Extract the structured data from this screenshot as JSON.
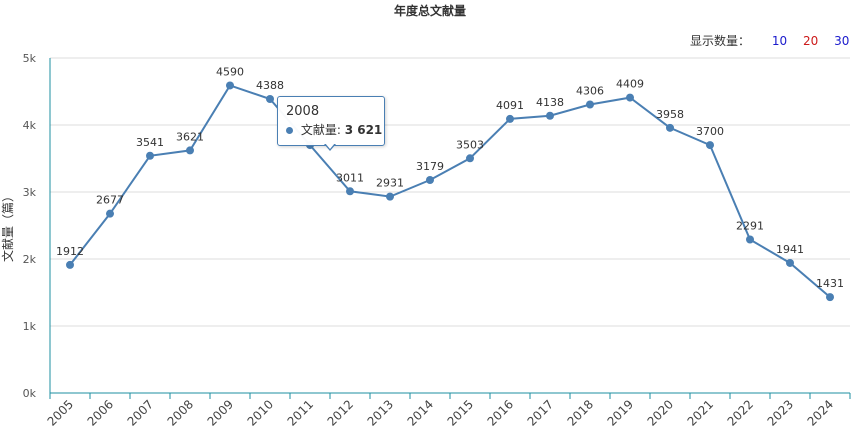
{
  "chart_data": {
    "type": "line",
    "title": "年度总文献量",
    "ylabel": "文献量（篇）",
    "xlabel": "",
    "x": [
      "2005",
      "2006",
      "2007",
      "2008",
      "2009",
      "2010",
      "2011",
      "2012",
      "2013",
      "2014",
      "2015",
      "2016",
      "2017",
      "2018",
      "2019",
      "2020",
      "2021",
      "2022",
      "2023",
      "2024"
    ],
    "series": [
      {
        "values": [
          1912,
          2677,
          3541,
          3621,
          4590,
          4388,
          3700,
          3011,
          2931,
          3179,
          3503,
          4091,
          4138,
          4306,
          4409,
          3958,
          3700,
          2291,
          1941,
          1431
        ]
      }
    ],
    "data_labels": [
      "1912",
      "2677",
      "3541",
      "3621",
      "4590",
      "4388",
      "",
      "3011",
      "2931",
      "3179",
      "3503",
      "4091",
      "4138",
      "4306",
      "4409",
      "3958",
      "3700",
      "2291",
      "1941",
      "1431"
    ],
    "ylim": [
      0,
      5000
    ],
    "yticks": [
      "0k",
      "1k",
      "2k",
      "3k",
      "4k",
      "5k"
    ],
    "grid": true,
    "line_color": "#4a7fb3"
  },
  "count_control": {
    "label": "显示数量：",
    "options": [
      {
        "label": "10",
        "color": "#1a1acc"
      },
      {
        "label": "20",
        "color": "#cc1a1a"
      },
      {
        "label": "30",
        "color": "#1a1acc"
      }
    ]
  },
  "tooltip": {
    "year": "2008",
    "series_label": "文献量:",
    "value": "3 621"
  }
}
